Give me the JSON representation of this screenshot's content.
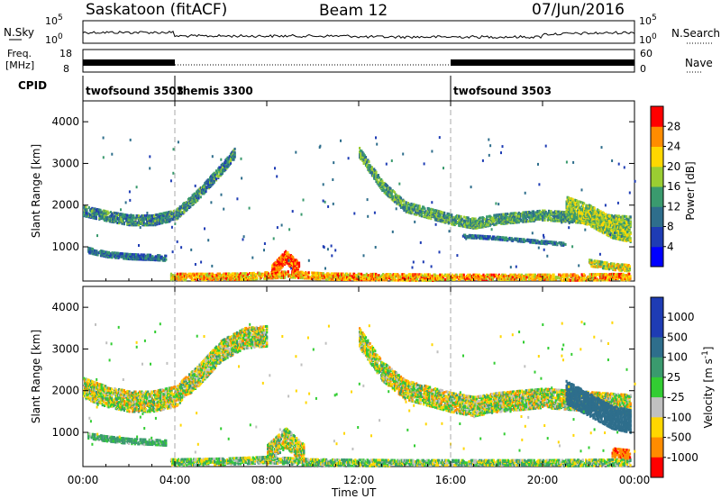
{
  "header": {
    "site": "Saskatoon (fitACF)",
    "beam": "Beam 12",
    "date": "07/Jun/2016"
  },
  "noise_panel": {
    "left_label": "N.Sky",
    "left_ticks": [
      "10^5",
      "10^0"
    ],
    "right_label": "N.Search",
    "right_ticks": [
      "10^5",
      "10^0"
    ]
  },
  "freq_panel": {
    "left_label_1": "Freq.",
    "left_label_2": "[MHz]",
    "left_ticks": [
      "18",
      "8"
    ],
    "right_label": "Nave",
    "right_ticks": [
      "60",
      "0"
    ]
  },
  "cpid": {
    "label": "CPID",
    "segments": [
      {
        "name": "twofsound 3503",
        "start_h": 0,
        "end_h": 4
      },
      {
        "name": "themis 3300",
        "start_h": 4,
        "end_h": 16
      },
      {
        "name": "twofsound 3503",
        "start_h": 16,
        "end_h": 24
      }
    ]
  },
  "time_axis": {
    "ticks": [
      "00:00",
      "04:00",
      "08:00",
      "12:00",
      "16:00",
      "20:00",
      "00:00"
    ],
    "label": "Time UT"
  },
  "colors": {
    "power_scale": [
      "#0000ff",
      "#1e3cb4",
      "#2e6e8c",
      "#3a9a6e",
      "#9acd32",
      "#ffd700",
      "#ff8c00",
      "#ff0000"
    ],
    "velocity_scale": [
      "#1e3cb4",
      "#2e6e8c",
      "#3a9a6e",
      "#32cd32",
      "#c0c0c0",
      "#ffd700",
      "#ff8c00",
      "#ff0000"
    ],
    "ground_scatter": "#c0c0c0"
  },
  "chart_data": [
    {
      "type": "heatmap",
      "title": "",
      "xlabel": "",
      "ylabel": "Slant Range [km]",
      "xlim": [
        0,
        24
      ],
      "ylim": [
        180,
        4500
      ],
      "yticks": [
        "1000",
        "2000",
        "3000",
        "4000"
      ],
      "colorbar": {
        "label": "Power [dB]",
        "ticks": [
          "28",
          "24",
          "20",
          "16",
          "12",
          "8",
          "4"
        ]
      },
      "scatter_bands": [
        {
          "x": [
            0.0,
            1.0,
            2.0,
            3.0,
            4.0,
            5.0,
            6.0,
            6.6
          ],
          "range_km": [
            1900,
            1780,
            1680,
            1680,
            1800,
            2300,
            2900,
            3300
          ],
          "width_km": 250,
          "intensity_db": 12
        },
        {
          "x": [
            0.2,
            1.0,
            2.0,
            3.0,
            3.6
          ],
          "range_km": [
            950,
            850,
            800,
            780,
            760
          ],
          "width_km": 120,
          "intensity_db": 10
        },
        {
          "x": [
            3.8,
            5.0,
            7.0,
            9.0,
            10.5,
            12.0,
            14.0,
            16.0,
            20.0,
            23.8
          ],
          "range_km": [
            320,
            320,
            330,
            380,
            330,
            320,
            310,
            300,
            300,
            320
          ],
          "width_km": 160,
          "intensity_db": 24
        },
        {
          "x": [
            8.2,
            8.8,
            9.4
          ],
          "range_km": [
            450,
            800,
            500
          ],
          "width_km": 300,
          "intensity_db": 28
        },
        {
          "x": [
            12.0,
            13.0,
            14.0,
            15.0,
            16.0,
            17.0,
            18.0,
            20.0,
            23.8
          ],
          "range_km": [
            3300,
            2500,
            2000,
            1850,
            1700,
            1600,
            1700,
            1800,
            1650
          ],
          "width_km": 250,
          "intensity_db": 14
        },
        {
          "x": [
            16.5,
            18.0,
            20.0,
            21.0
          ],
          "range_km": [
            1300,
            1250,
            1150,
            1100
          ],
          "width_km": 80,
          "intensity_db": 10
        },
        {
          "x": [
            21.0,
            22.0,
            23.0,
            23.8
          ],
          "range_km": [
            2000,
            1800,
            1500,
            1400
          ],
          "width_km": 500,
          "intensity_db": 18
        },
        {
          "x": [
            22.0,
            23.0,
            23.8
          ],
          "range_km": [
            650,
            560,
            520
          ],
          "width_km": 150,
          "intensity_db": 20
        }
      ]
    },
    {
      "type": "heatmap",
      "title": "",
      "xlabel": "Time UT",
      "ylabel": "Slant Range [km]",
      "xlim": [
        0,
        24
      ],
      "ylim": [
        180,
        4500
      ],
      "yticks": [
        "1000",
        "2000",
        "3000",
        "4000"
      ],
      "colorbar": {
        "label": "Velocity [m s^-1]",
        "ticks": [
          "1000",
          "500",
          "100",
          "25",
          "-25",
          "-100",
          "-500",
          "-1000"
        ]
      },
      "scatter_bands": [
        {
          "x": [
            0.0,
            1.0,
            2.0,
            3.0,
            4.0,
            5.0,
            6.0,
            7.0,
            8.0
          ],
          "range_km": [
            2100,
            1900,
            1780,
            1780,
            1900,
            2400,
            3000,
            3300,
            3350
          ],
          "width_km": 500,
          "velocity": 0
        },
        {
          "x": [
            0.2,
            1.0,
            2.0,
            3.0,
            3.6
          ],
          "range_km": [
            950,
            880,
            820,
            800,
            780
          ],
          "width_km": 120,
          "velocity": 150
        },
        {
          "x": [
            3.8,
            6.0,
            8.0,
            10.0,
            12.0,
            14.0,
            16.0,
            18.0,
            20.0,
            23.8
          ],
          "range_km": [
            320,
            340,
            380,
            320,
            310,
            300,
            300,
            300,
            300,
            320
          ],
          "width_km": 160,
          "velocity": 60
        },
        {
          "x": [
            8.0,
            8.8,
            9.6
          ],
          "range_km": [
            500,
            900,
            500
          ],
          "width_km": 450,
          "velocity": 0
        },
        {
          "x": [
            12.0,
            13.0,
            14.0,
            15.0,
            16.0,
            17.0,
            18.0,
            20.0,
            23.8
          ],
          "range_km": [
            3300,
            2500,
            2050,
            1900,
            1750,
            1650,
            1750,
            1850,
            1700
          ],
          "width_km": 450,
          "velocity": 0
        },
        {
          "x": [
            21.0,
            22.0,
            23.0,
            23.8
          ],
          "range_km": [
            2000,
            1700,
            1400,
            1300
          ],
          "width_km": 550,
          "velocity": 700
        },
        {
          "x": [
            23.0,
            23.8
          ],
          "range_km": [
            550,
            500
          ],
          "width_km": 200,
          "velocity": -400
        }
      ]
    }
  ]
}
